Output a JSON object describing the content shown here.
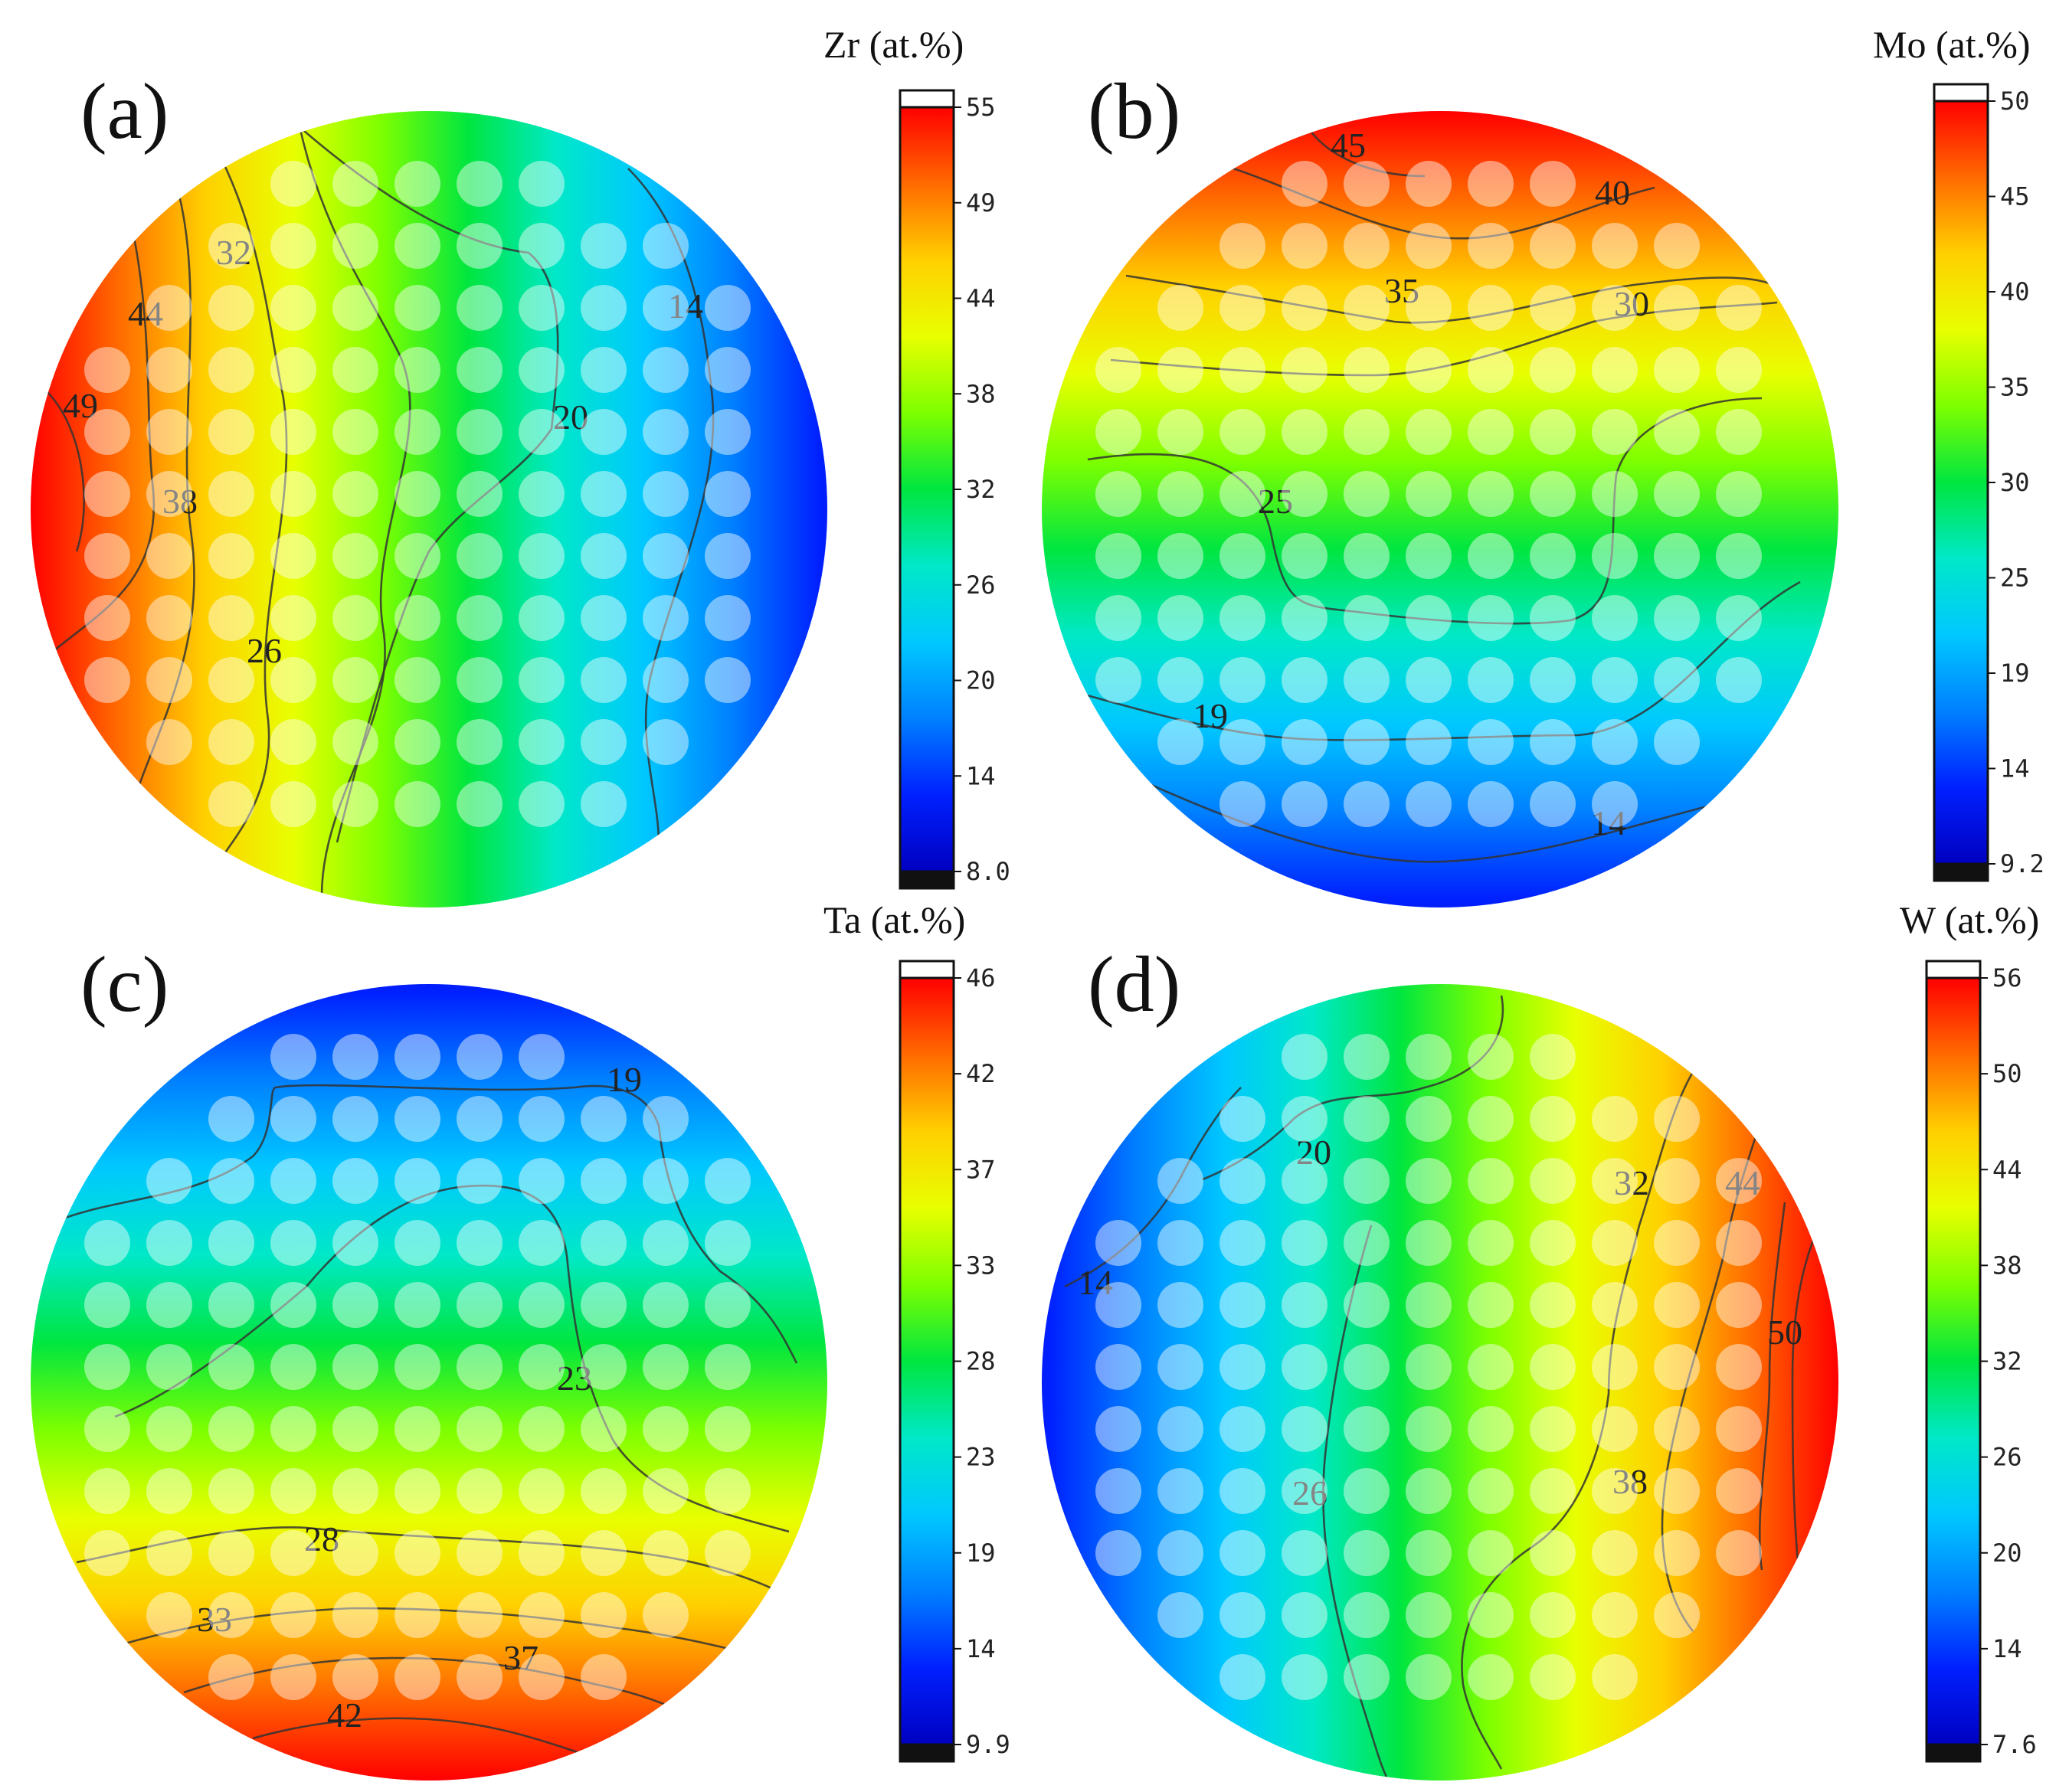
{
  "chart_data": [
    {
      "type": "heatmap",
      "panel_label": "(a)",
      "colorbar_title": "Zr (at.%)",
      "colorbar_ticks": [
        "55",
        "49",
        "44",
        "38",
        "32",
        "26",
        "20",
        "14",
        "8.0"
      ],
      "range": [
        8.0,
        55
      ],
      "gradient_direction": "left to right (high at left edge)",
      "contour_labels": [
        "49",
        "44",
        "38",
        "32",
        "26",
        "20",
        "14"
      ]
    },
    {
      "type": "heatmap",
      "panel_label": "(b)",
      "colorbar_title": "Mo (at.%)",
      "colorbar_ticks": [
        "50",
        "45",
        "40",
        "35",
        "30",
        "25",
        "19",
        "14",
        "9.2"
      ],
      "range": [
        9.2,
        50
      ],
      "gradient_direction": "top to bottom (high at top edge)",
      "contour_labels": [
        "45",
        "40",
        "35",
        "30",
        "25",
        "19",
        "14"
      ]
    },
    {
      "type": "heatmap",
      "panel_label": "(c)",
      "colorbar_title": "Ta (at.%)",
      "colorbar_ticks": [
        "46",
        "42",
        "37",
        "33",
        "28",
        "23",
        "19",
        "14",
        "9.9"
      ],
      "range": [
        9.9,
        46
      ],
      "gradient_direction": "bottom to top (high at bottom edge)",
      "contour_labels": [
        "19",
        "23",
        "28",
        "33",
        "37",
        "42"
      ]
    },
    {
      "type": "heatmap",
      "panel_label": "(d)",
      "colorbar_title": "W (at.%)",
      "colorbar_ticks": [
        "56",
        "50",
        "44",
        "38",
        "32",
        "26",
        "20",
        "14",
        "7.6"
      ],
      "range": [
        7.6,
        56
      ],
      "gradient_direction": "right to left (high at right edge)",
      "contour_labels": [
        "20",
        "14",
        "32",
        "44",
        "50",
        "38",
        "26"
      ]
    }
  ],
  "colors": {
    "scale": [
      "#ff0000",
      "#ff6a00",
      "#ffd000",
      "#e8ff00",
      "#7dff00",
      "#00e640",
      "#00e8c8",
      "#00c8ff",
      "#0080ff",
      "#0020ff",
      "#0000c0"
    ],
    "spot": "#ffffff",
    "contour": "#333333"
  },
  "measurement_grid": "point array of measurement spots overlaid on each wafer"
}
